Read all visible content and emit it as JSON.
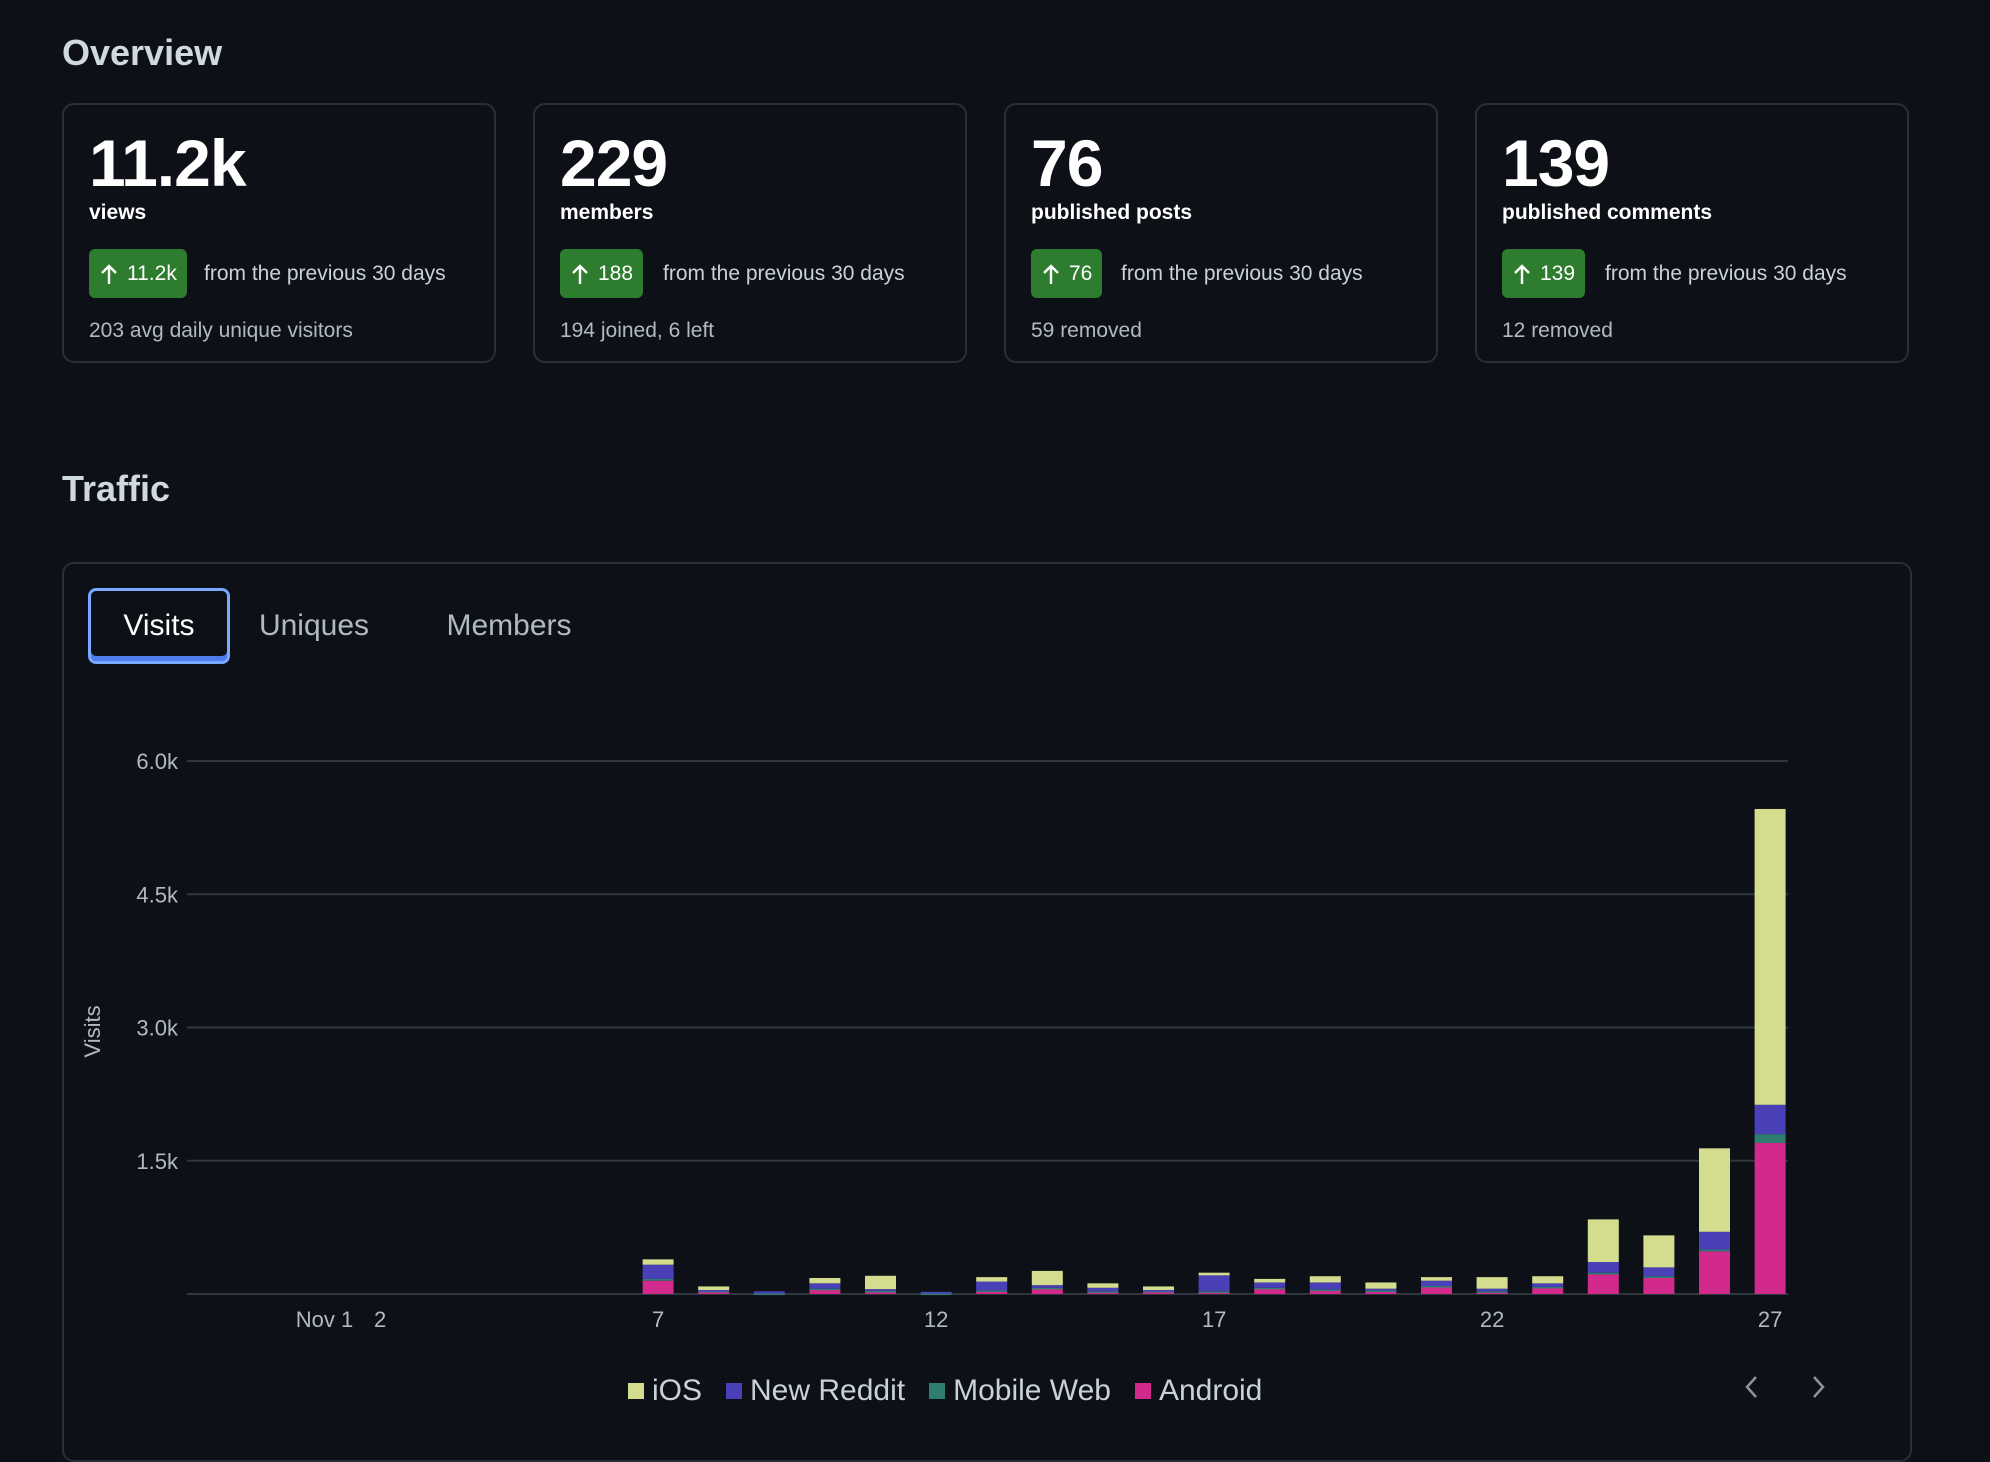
{
  "overview": {
    "title": "Overview",
    "cards": [
      {
        "value": "11.2k",
        "label": "views",
        "delta": "11.2k",
        "compare": "from the previous 30 days",
        "note": "203 avg daily unique visitors"
      },
      {
        "value": "229",
        "label": "members",
        "delta": "188",
        "compare": "from the previous 30 days",
        "note": "194 joined, 6 left"
      },
      {
        "value": "76",
        "label": "published posts",
        "delta": "76",
        "compare": "from the previous 30 days",
        "note": "59 removed"
      },
      {
        "value": "139",
        "label": "published comments",
        "delta": "139",
        "compare": "from the previous 30 days",
        "note": "12 removed"
      }
    ]
  },
  "traffic": {
    "title": "Traffic",
    "tabs": [
      "Visits",
      "Uniques",
      "Members"
    ],
    "active_tab": "Visits"
  },
  "colors": {
    "ios": "#d4dd8e",
    "new_reddit": "#4a40b8",
    "mobile_web": "#2e7d6e",
    "android": "#d12a8c",
    "badge": "#2e7d2e",
    "tab_active_border": "#7aa7ff"
  },
  "icons": {
    "badge_arrow": "arrow-up-icon",
    "pager_prev": "chevron-left-icon",
    "pager_next": "chevron-right-icon"
  },
  "chart_data": {
    "type": "bar",
    "stacked": true,
    "ylabel": "Visits",
    "xlabel": "",
    "ylim": [
      0,
      6000
    ],
    "yticks": [
      1500,
      3000,
      4500,
      6000
    ],
    "ytick_labels": [
      "1.5k",
      "3.0k",
      "4.5k",
      "6.0k"
    ],
    "categories": [
      "Nov 1",
      "2",
      "3",
      "4",
      "5",
      "6",
      "7",
      "8",
      "9",
      "10",
      "11",
      "12",
      "13",
      "14",
      "15",
      "16",
      "17",
      "18",
      "19",
      "20",
      "21",
      "22",
      "23",
      "24",
      "25",
      "26",
      "27"
    ],
    "xtick_labels": [
      "Nov 1",
      "2",
      "7",
      "12",
      "17",
      "22",
      "27"
    ],
    "legend": [
      "iOS",
      "New Reddit",
      "Mobile Web",
      "Android"
    ],
    "legend_position": "bottom-center",
    "grid": true,
    "series": [
      {
        "name": "Android",
        "values": [
          0,
          0,
          0,
          0,
          0,
          0,
          150,
          30,
          0,
          50,
          30,
          0,
          30,
          60,
          20,
          30,
          20,
          60,
          40,
          30,
          80,
          20,
          70,
          220,
          180,
          480,
          1700
        ]
      },
      {
        "name": "Mobile Web",
        "values": [
          0,
          0,
          0,
          0,
          0,
          0,
          20,
          5,
          5,
          10,
          5,
          5,
          10,
          10,
          10,
          5,
          10,
          10,
          10,
          10,
          10,
          10,
          10,
          20,
          20,
          20,
          100
        ]
      },
      {
        "name": "New Reddit",
        "values": [
          0,
          0,
          0,
          0,
          0,
          0,
          160,
          10,
          25,
          60,
          20,
          20,
          100,
          30,
          40,
          10,
          180,
          60,
          80,
          20,
          60,
          30,
          40,
          120,
          100,
          200,
          330
        ]
      },
      {
        "name": "iOS",
        "values": [
          0,
          0,
          0,
          0,
          0,
          0,
          60,
          40,
          0,
          60,
          150,
          0,
          50,
          160,
          50,
          40,
          30,
          40,
          70,
          70,
          40,
          130,
          80,
          480,
          360,
          940,
          3330
        ]
      }
    ]
  }
}
